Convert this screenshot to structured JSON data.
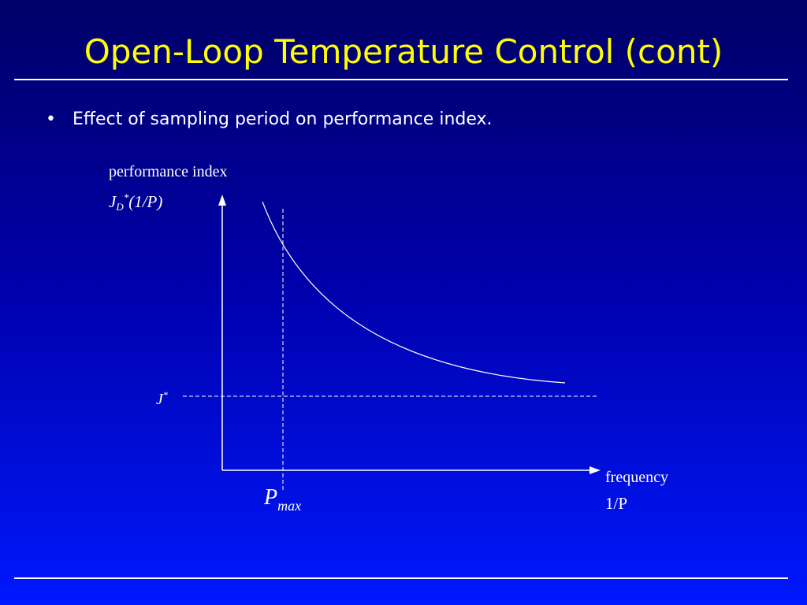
{
  "slide": {
    "title": "Open-Loop Temperature Control (cont)",
    "bullet_symbol": "•",
    "bullet_text": "Effect of sampling period on performance index."
  },
  "diagram": {
    "y_axis_label": "performance index",
    "y_axis_formula": {
      "base": "J",
      "subscript": "D",
      "superscript": "*",
      "rest": "(1/P)"
    },
    "x_axis_label": "frequency",
    "x_axis_formula": "1/P",
    "asymptote_label": {
      "base": "J",
      "superscript": "*"
    },
    "threshold_label": {
      "base": "P",
      "subscript": "max"
    }
  }
}
